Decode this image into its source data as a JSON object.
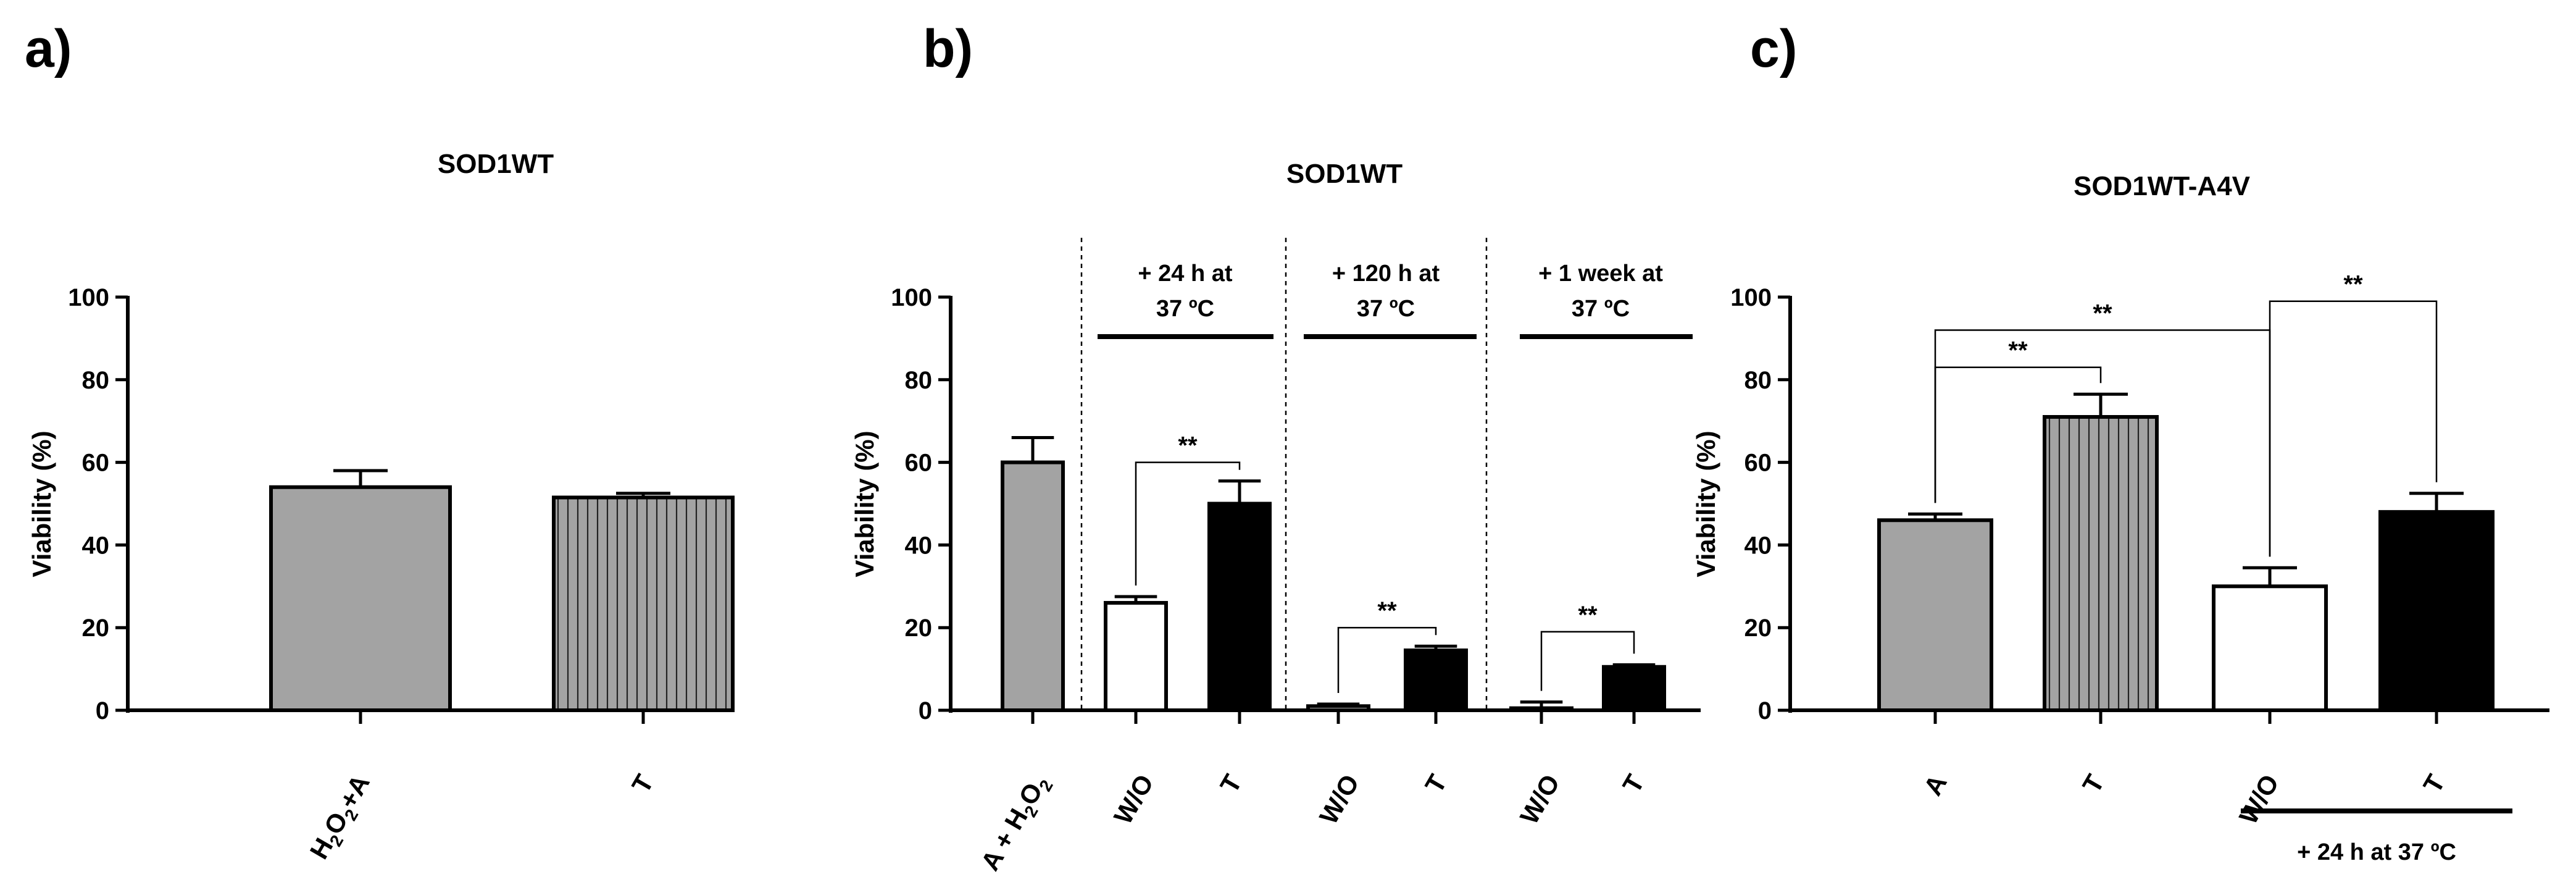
{
  "colors": {
    "gray": "#a3a3a3",
    "white": "#ffffff",
    "black": "#000000"
  },
  "chart_data": [
    {
      "panel": "a)",
      "type": "bar",
      "title": "SOD1WT",
      "ylabel": "Viability (%)",
      "ylim": [
        0,
        100
      ],
      "yticks": [
        0,
        20,
        40,
        60,
        80,
        100
      ],
      "bars": [
        {
          "label": "H2O2+A",
          "value": 54,
          "err": 4,
          "fill": "gray",
          "hatch": false
        },
        {
          "label": "T",
          "value": 51.5,
          "err": 1,
          "fill": "gray",
          "hatch": true
        }
      ],
      "brackets": []
    },
    {
      "panel": "b)",
      "type": "bar",
      "title": "SOD1WT",
      "ylabel": "Viability (%)",
      "ylim": [
        0,
        100
      ],
      "yticks": [
        0,
        20,
        40,
        60,
        80,
        100
      ],
      "bars": [
        {
          "label": "A + H2O2",
          "value": 60,
          "err": 6,
          "fill": "gray",
          "hatch": false
        },
        {
          "label": "W/O",
          "value": 26,
          "err": 1.5,
          "fill": "white",
          "hatch": false
        },
        {
          "label": "T",
          "value": 50,
          "err": 5.5,
          "fill": "black",
          "hatch": false
        },
        {
          "label": "W/O",
          "value": 1,
          "err": 0.5,
          "fill": "white",
          "hatch": false
        },
        {
          "label": "T",
          "value": 14.5,
          "err": 1,
          "fill": "black",
          "hatch": false
        },
        {
          "label": "W/O",
          "value": 0.5,
          "err": 1.5,
          "fill": "white",
          "hatch": false
        },
        {
          "label": "T",
          "value": 10.5,
          "err": 0.5,
          "fill": "black",
          "hatch": false
        }
      ],
      "groups": [
        {
          "line1": "+ 24 h at",
          "line2": "37 ºC",
          "bars": [
            1,
            2
          ]
        },
        {
          "line1": "+ 120 h at",
          "line2": "37 ºC",
          "bars": [
            3,
            4
          ]
        },
        {
          "line1": "+ 1 week at",
          "line2": "37 ºC",
          "bars": [
            5,
            6
          ]
        }
      ],
      "brackets": [
        {
          "from": 1,
          "to": 2,
          "y": 60,
          "text": "**"
        },
        {
          "from": 3,
          "to": 4,
          "y": 20,
          "text": "**"
        },
        {
          "from": 5,
          "to": 6,
          "y": 19,
          "text": "**"
        }
      ]
    },
    {
      "panel": "c)",
      "type": "bar",
      "title": "SOD1WT-A4V",
      "ylabel": "Viability (%)",
      "ylim": [
        0,
        100
      ],
      "yticks": [
        0,
        20,
        40,
        60,
        80,
        100
      ],
      "bars": [
        {
          "label": "A",
          "value": 46,
          "err": 1.5,
          "fill": "gray",
          "hatch": false
        },
        {
          "label": "T",
          "value": 71,
          "err": 5.5,
          "fill": "gray",
          "hatch": true
        },
        {
          "label": "W/O",
          "value": 30,
          "err": 4.5,
          "fill": "white",
          "hatch": false
        },
        {
          "label": "T",
          "value": 48,
          "err": 4.5,
          "fill": "black",
          "hatch": false
        }
      ],
      "bottom_note": "+ 24 h at 37 ºC",
      "bottom_note_bars": [
        2,
        3
      ],
      "brackets": [
        {
          "from": 0,
          "to": 1,
          "y": 83,
          "text": "**"
        },
        {
          "from": 0,
          "to": 2,
          "y": 92,
          "text": "**"
        },
        {
          "from": 2,
          "to": 3,
          "y": 99,
          "text": "**"
        }
      ]
    }
  ]
}
